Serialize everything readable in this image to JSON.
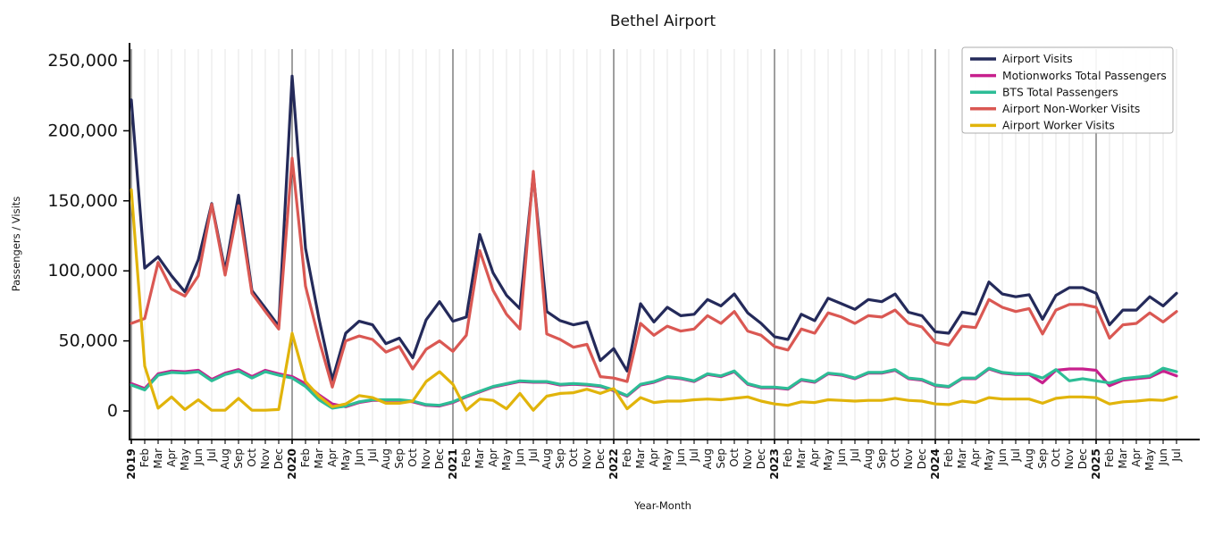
{
  "chart_data": {
    "type": "line",
    "title": "Bethel Airport",
    "xlabel": "Year-Month",
    "ylabel": "Passengers / Visits",
    "grid": "vertical-monthly, dark vertical line at each year start",
    "legend_position": "upper right",
    "ylim": [
      -23000,
      253000
    ],
    "y_ticks": [
      {
        "value": 0,
        "label": "0"
      },
      {
        "value": 50000,
        "label": "50,000"
      },
      {
        "value": 100000,
        "label": "100,000"
      },
      {
        "value": 150000,
        "label": "150,000"
      },
      {
        "value": 200000,
        "label": "200,000"
      },
      {
        "value": 250000,
        "label": "250,000"
      }
    ],
    "x_tick_labels": [
      "2019",
      "Feb",
      "Mar",
      "Apr",
      "May",
      "Jun",
      "Jul",
      "Aug",
      "Sep",
      "Oct",
      "Nov",
      "Dec",
      "2020",
      "Feb",
      "Mar",
      "Apr",
      "May",
      "Jun",
      "Jul",
      "Aug",
      "Sep",
      "Oct",
      "Nov",
      "Dec",
      "2021",
      "Feb",
      "Mar",
      "Apr",
      "May",
      "Jun",
      "Jul",
      "Aug",
      "Sep",
      "Oct",
      "Nov",
      "Dec",
      "2022",
      "Feb",
      "Mar",
      "Apr",
      "May",
      "Jun",
      "Jul",
      "Aug",
      "Sep",
      "Oct",
      "Nov",
      "Dec",
      "2023",
      "Feb",
      "Mar",
      "Apr",
      "May",
      "Jun",
      "Jul",
      "Aug",
      "Sep",
      "Oct",
      "Nov",
      "Dec",
      "2024",
      "Feb",
      "Mar",
      "Apr",
      "May",
      "Jun",
      "Jul",
      "Aug",
      "Sep",
      "Oct",
      "Nov",
      "Dec",
      "2025",
      "Feb",
      "Mar",
      "Apr",
      "May",
      "Jun",
      "Jul"
    ],
    "year_tick_indices": [
      0,
      12,
      24,
      36,
      48,
      60,
      72
    ],
    "series": [
      {
        "name": "Airport Visits",
        "color": "#242a5a",
        "values": [
          222000,
          102000,
          110000,
          96500,
          85000,
          108000,
          148000,
          100000,
          154000,
          86000,
          73500,
          60500,
          239000,
          116000,
          66000,
          22000,
          55500,
          64000,
          61500,
          48000,
          52000,
          38000,
          65000,
          78000,
          64000,
          67000,
          126000,
          98500,
          82500,
          73000,
          169000,
          71000,
          64500,
          61500,
          63500,
          36000,
          44500,
          28500,
          76500,
          63500,
          74000,
          68000,
          69000,
          79500,
          75000,
          83500,
          70000,
          62500,
          53000,
          51000,
          69000,
          64500,
          80500,
          76500,
          72500,
          79500,
          78000,
          83500,
          70500,
          68000,
          56500,
          55500,
          70500,
          69000,
          92000,
          83500,
          81500,
          83000,
          65500,
          82500,
          88000,
          88000,
          84000,
          61500,
          72000,
          72000,
          81500,
          75000,
          84000
        ]
      },
      {
        "name": "Motionworks Total Passengers",
        "color": "#c7208d",
        "values": [
          19500,
          16000,
          26500,
          28500,
          28000,
          29000,
          22500,
          27000,
          29500,
          24500,
          29000,
          26500,
          24500,
          19500,
          11500,
          5000,
          3000,
          6000,
          7500,
          7500,
          7500,
          6500,
          4000,
          3500,
          6000,
          10000,
          13500,
          17000,
          19000,
          21000,
          20500,
          20500,
          18500,
          19000,
          18500,
          17500,
          14500,
          10500,
          18500,
          20500,
          24000,
          23000,
          21000,
          26000,
          24500,
          28000,
          19000,
          16500,
          16500,
          15500,
          22000,
          20500,
          26500,
          25500,
          23000,
          27000,
          27000,
          29000,
          23000,
          22000,
          18000,
          17000,
          23000,
          23000,
          30000,
          27000,
          26000,
          26000,
          20000,
          29000,
          30000,
          30000,
          29000,
          18000,
          22000,
          23000,
          24000,
          28500,
          25000
        ]
      },
      {
        "name": "BTS Total Passengers",
        "color": "#2dbd96",
        "values": [
          18500,
          15000,
          25500,
          27500,
          27000,
          28000,
          21500,
          26000,
          28500,
          23500,
          28000,
          25500,
          23500,
          17500,
          8000,
          2000,
          3500,
          6500,
          8000,
          8000,
          8000,
          7000,
          4500,
          4000,
          6500,
          10500,
          14000,
          17500,
          19500,
          21500,
          21000,
          21000,
          19000,
          19500,
          19000,
          18000,
          15000,
          11000,
          19000,
          21000,
          24500,
          23500,
          21500,
          26500,
          25000,
          28500,
          19500,
          17000,
          17000,
          16000,
          22500,
          21000,
          27000,
          26000,
          23500,
          27500,
          27500,
          29500,
          23500,
          22500,
          18500,
          17500,
          23500,
          23500,
          30500,
          27500,
          26500,
          26500,
          23500,
          29500,
          21500,
          23000,
          21500,
          20000,
          23000,
          24000,
          25000,
          30500,
          28000
        ]
      },
      {
        "name": "Airport Non-Worker Visits",
        "color": "#da5853",
        "values": [
          62500,
          66000,
          106000,
          87000,
          82000,
          96500,
          147500,
          97000,
          146500,
          84000,
          71000,
          58500,
          180500,
          89000,
          51000,
          17000,
          50000,
          53500,
          51000,
          42000,
          46000,
          30000,
          44000,
          50000,
          42500,
          54000,
          114500,
          86000,
          69000,
          58500,
          171000,
          55000,
          51000,
          45500,
          47500,
          24500,
          23500,
          21000,
          62500,
          54000,
          60500,
          57000,
          58500,
          68000,
          62500,
          71000,
          57000,
          54000,
          46000,
          43500,
          58500,
          55500,
          70000,
          67000,
          62500,
          68000,
          67000,
          72000,
          62500,
          60000,
          49000,
          47000,
          60500,
          59500,
          79500,
          74000,
          71000,
          73000,
          55000,
          72000,
          76000,
          76000,
          74000,
          52000,
          61500,
          62500,
          70000,
          63500,
          71000
        ]
      },
      {
        "name": "Airport Worker Visits",
        "color": "#e1b40b",
        "values": [
          158000,
          32000,
          2000,
          10000,
          1000,
          8000,
          500,
          500,
          9000,
          500,
          500,
          1000,
          55500,
          21000,
          10500,
          3000,
          5000,
          11000,
          9500,
          5500,
          5500,
          7000,
          21000,
          28000,
          19000,
          500,
          8500,
          7500,
          1500,
          12500,
          500,
          10500,
          12500,
          13000,
          15500,
          12500,
          16000,
          1500,
          9500,
          6000,
          7000,
          7000,
          8000,
          8500,
          8000,
          9000,
          10000,
          7000,
          5000,
          4000,
          6500,
          6000,
          8000,
          7500,
          7000,
          7500,
          7500,
          9000,
          7500,
          7000,
          5000,
          4500,
          7000,
          6000,
          9500,
          8500,
          8500,
          8500,
          5500,
          9000,
          10000,
          10000,
          9500,
          5000,
          6500,
          7000,
          8000,
          7500,
          10000
        ]
      }
    ],
    "style": {
      "month_grid_color": "#e4e4e4",
      "year_line_color": "#3f3f3f",
      "spine_color": "#000000",
      "legend_border_color": "#adadad",
      "text_color": "#141414",
      "line_width": 3.2
    }
  }
}
